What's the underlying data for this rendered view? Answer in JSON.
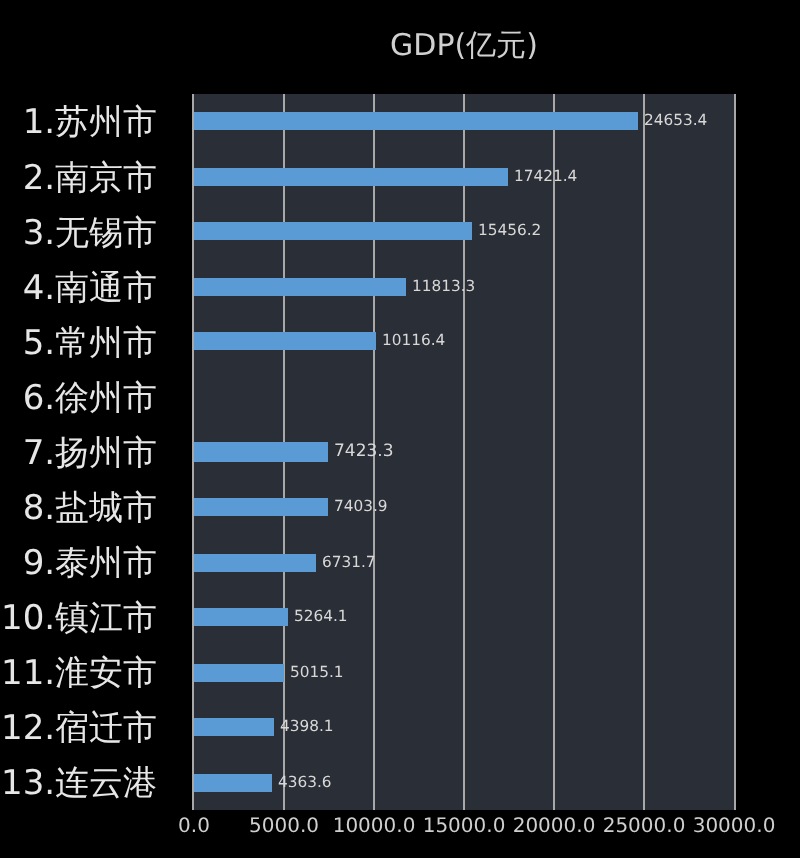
{
  "chart_data": {
    "type": "bar",
    "orientation": "horizontal",
    "title": "GDP(亿元)",
    "categories": [
      "1.苏州市",
      "2.南京市",
      "3.无锡市",
      "4.南通市",
      "5.常州市",
      "6.徐州市",
      "7.扬州市",
      "8.盐城市",
      "9.泰州市",
      "10.镇江市",
      "11.淮安市",
      "12.宿迁市",
      "13.连云港"
    ],
    "values": [
      24653.4,
      17421.4,
      15456.2,
      11813.3,
      10116.4,
      null,
      7423.3,
      7403.9,
      6731.7,
      5264.1,
      5015.1,
      4398.1,
      4363.6
    ],
    "color": "#5b9bd5",
    "xlim": [
      0,
      30000
    ],
    "xticks": [
      {
        "value": 0,
        "label": "0.0"
      },
      {
        "value": 5000,
        "label": "5000.0"
      },
      {
        "value": 10000,
        "label": "10000.0"
      },
      {
        "value": 15000,
        "label": "15000.0"
      },
      {
        "value": 20000,
        "label": "20000.0"
      },
      {
        "value": 25000,
        "label": "25000.0"
      },
      {
        "value": 30000,
        "label": "30000.0"
      }
    ],
    "grid": "x",
    "data_labels": true
  }
}
